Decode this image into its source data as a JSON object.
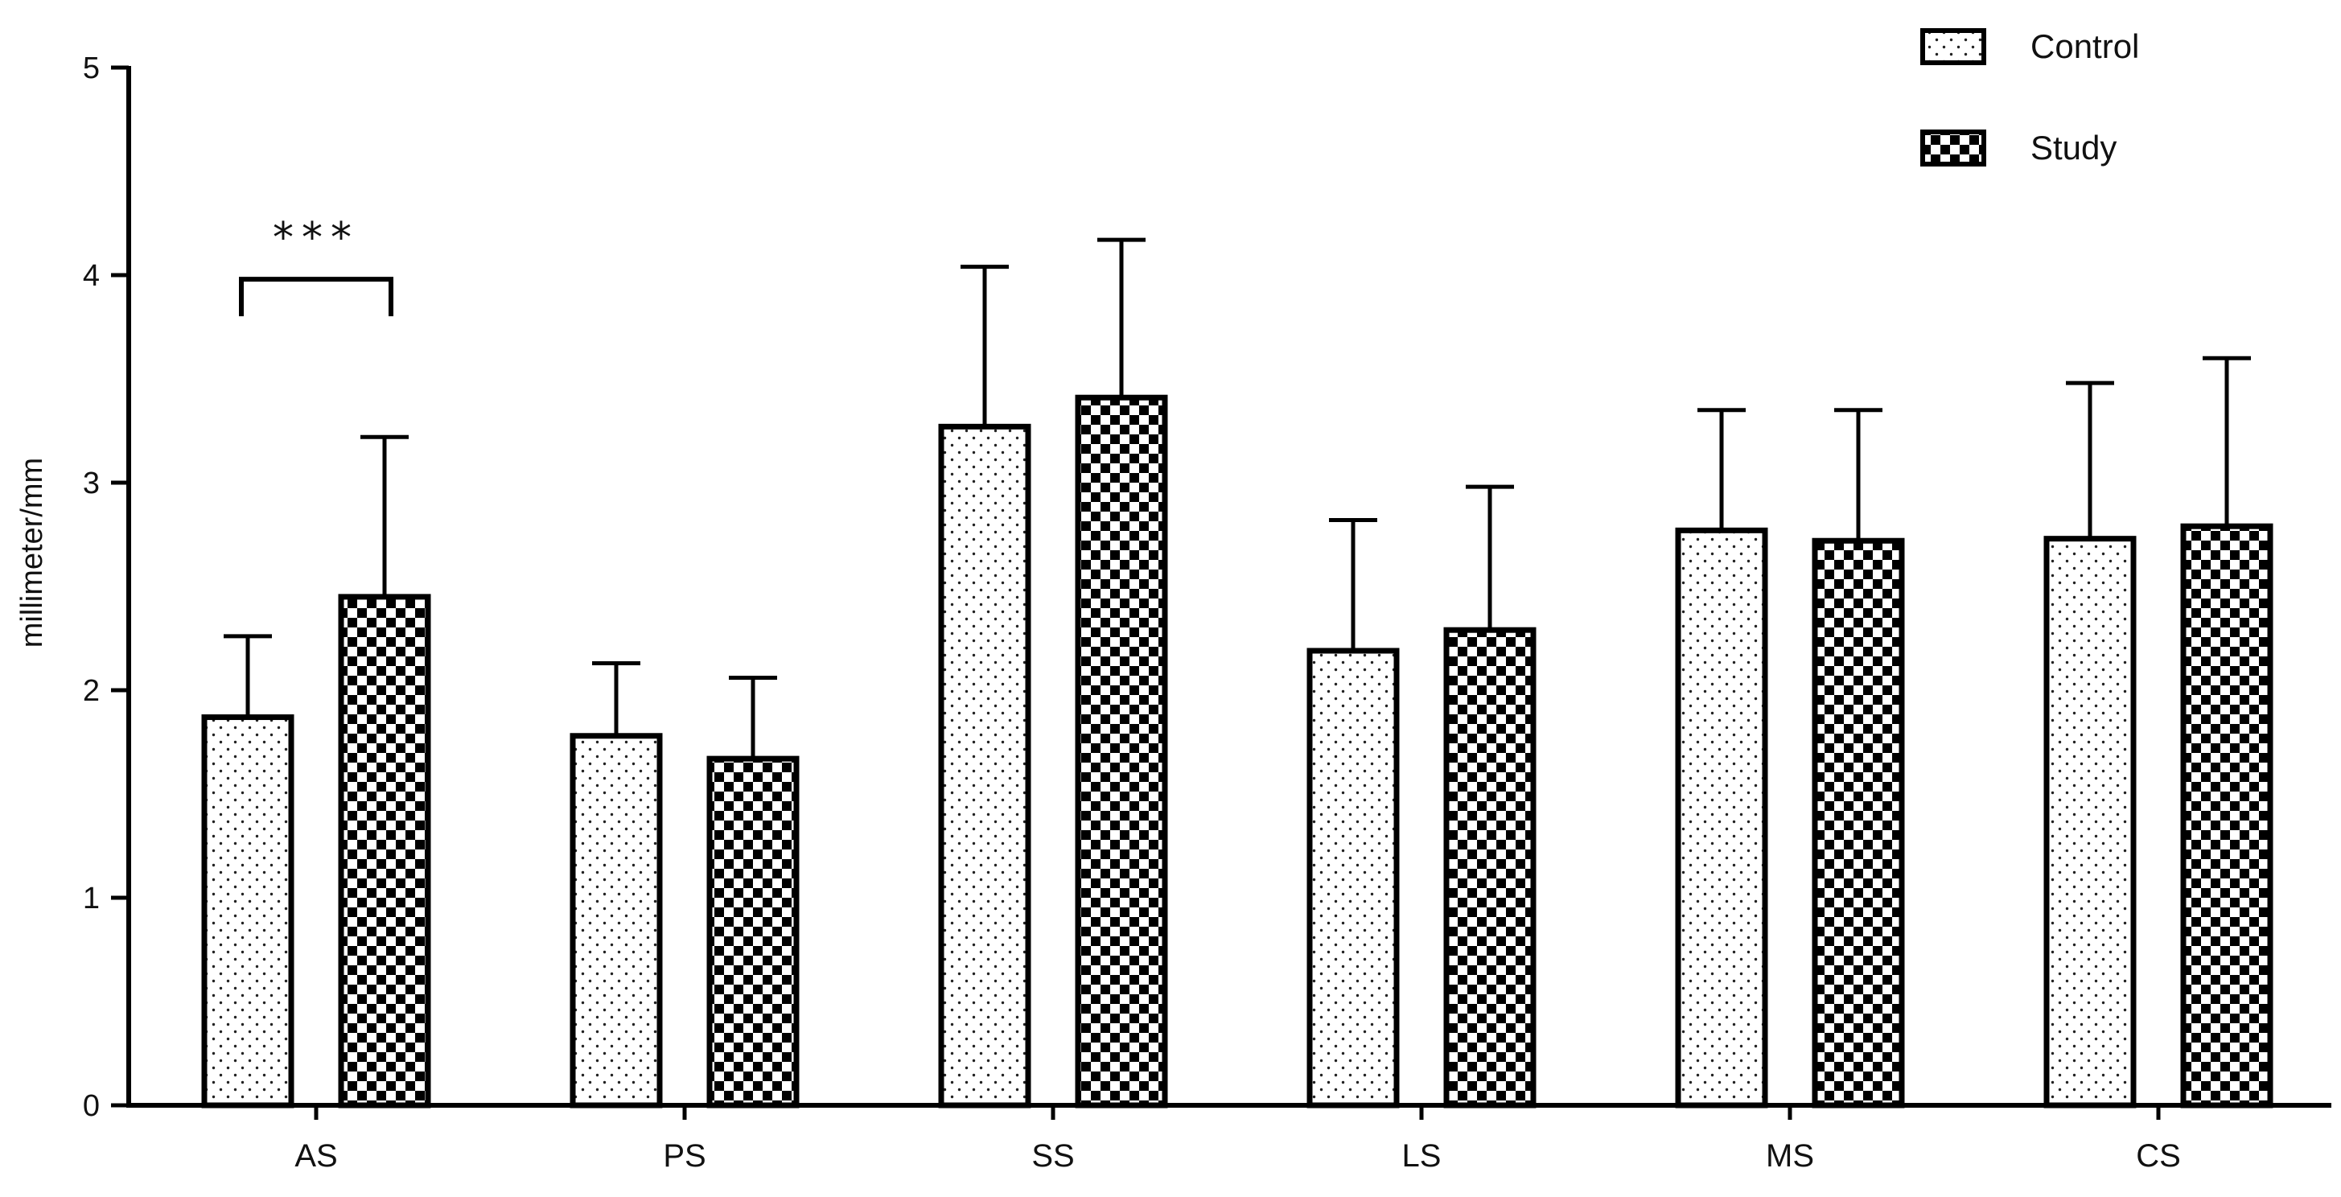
{
  "chart_data": {
    "type": "bar",
    "ylabel": "millimeter/mm",
    "xlabel": "",
    "ylim": [
      0,
      5
    ],
    "yticks": [
      0,
      1,
      2,
      3,
      4,
      5
    ],
    "categories": [
      "AS",
      "PS",
      "SS",
      "LS",
      "MS",
      "CS"
    ],
    "series": [
      {
        "name": "Control",
        "pattern": "dots",
        "values": [
          1.87,
          1.78,
          3.27,
          2.19,
          2.77,
          2.73
        ],
        "error": [
          0.39,
          0.35,
          0.77,
          0.63,
          0.58,
          0.75
        ]
      },
      {
        "name": "Study",
        "pattern": "checker",
        "values": [
          2.45,
          1.67,
          3.41,
          2.29,
          2.72,
          2.79
        ],
        "error": [
          0.77,
          0.39,
          0.76,
          0.69,
          0.63,
          0.81
        ]
      }
    ],
    "annotations": [
      {
        "text": "***",
        "category": "AS",
        "type": "significance-bracket"
      }
    ],
    "legend_position": "top-right",
    "grid": false
  }
}
